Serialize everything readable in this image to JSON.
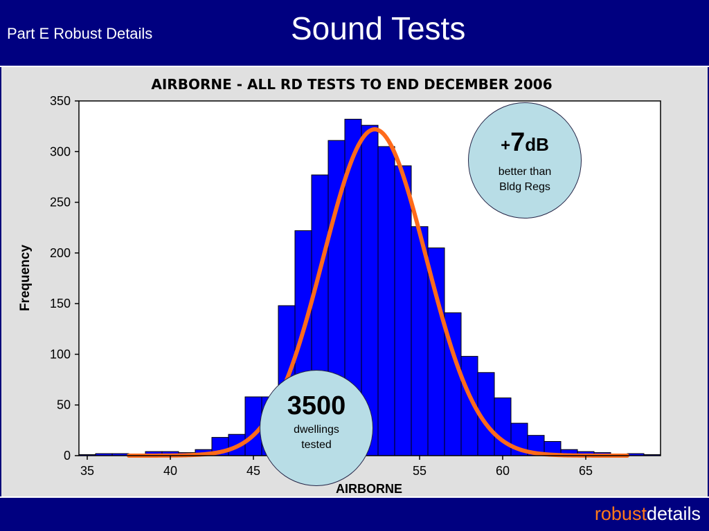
{
  "header": {
    "subtitle": "Part E Robust Details",
    "title": "Sound Tests"
  },
  "footer": {
    "brand_part1": "robust",
    "brand_part2": "details",
    "brand_part1_color": "#ff7a1a"
  },
  "callouts": {
    "top": {
      "plus": "+",
      "number": "7",
      "unit": "dB",
      "line1": "better than",
      "line2": "Bldg Regs"
    },
    "bottom": {
      "number": "3500",
      "line1": "dwellings",
      "line2": "tested"
    }
  },
  "chart_data": {
    "type": "bar",
    "title": "AIRBORNE - ALL RD TESTS TO END DECEMBER 2006",
    "xlabel": "AIRBORNE",
    "ylabel": "Frequency",
    "xlim": [
      34.5,
      69.5
    ],
    "ylim": [
      0,
      350
    ],
    "xticks": [
      35,
      40,
      45,
      50,
      55,
      60,
      65
    ],
    "yticks": [
      0,
      50,
      100,
      150,
      200,
      250,
      300,
      350
    ],
    "bin_width": 1,
    "bin_centers": [
      35,
      36,
      37,
      38,
      39,
      40,
      41,
      42,
      43,
      44,
      45,
      46,
      47,
      48,
      49,
      50,
      51,
      52,
      53,
      54,
      55,
      56,
      57,
      58,
      59,
      60,
      61,
      62,
      63,
      64,
      65,
      66,
      67,
      68,
      69
    ],
    "values": [
      1,
      2,
      2,
      1,
      4,
      4,
      3,
      6,
      18,
      21,
      58,
      58,
      148,
      222,
      277,
      311,
      332,
      326,
      305,
      286,
      226,
      205,
      141,
      98,
      82,
      57,
      32,
      20,
      14,
      6,
      4,
      3,
      1,
      2,
      1
    ],
    "bar_color": "#0000ff",
    "fit": {
      "type": "normal",
      "mean": 52.3,
      "peak": 322,
      "sd": 3.1,
      "x_range": [
        37.5,
        67.5
      ],
      "color": "#ff6a1a"
    },
    "grid": false
  }
}
